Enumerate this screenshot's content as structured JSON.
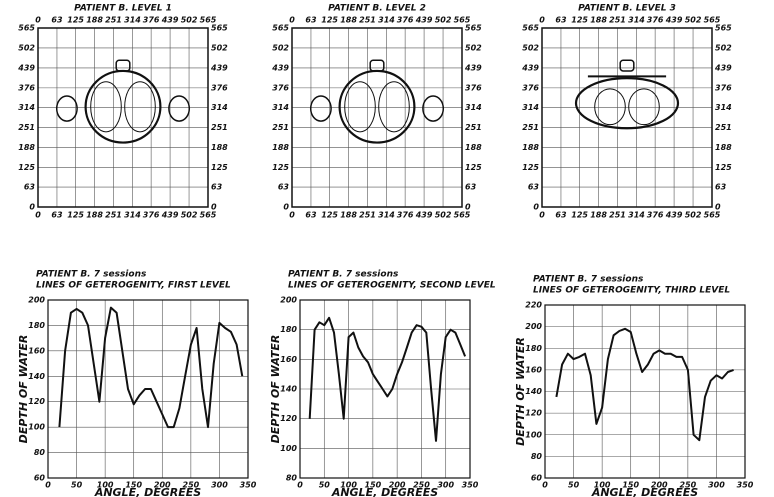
{
  "chart_data": [
    {
      "type": "image",
      "title": "PATIENT B. LEVEL 1",
      "xlim": [
        0,
        565
      ],
      "ylim": [
        0,
        565
      ],
      "xticks": [
        0,
        63,
        125,
        188,
        251,
        314,
        376,
        439,
        502,
        565
      ],
      "yticks": [
        0,
        63,
        125,
        188,
        251,
        314,
        376,
        439,
        502,
        565
      ],
      "grid": true
    },
    {
      "type": "image",
      "title": "PATIENT B. LEVEL 2",
      "xlim": [
        0,
        565
      ],
      "ylim": [
        0,
        565
      ],
      "xticks": [
        0,
        63,
        125,
        188,
        251,
        314,
        376,
        439,
        502,
        565
      ],
      "yticks": [
        0,
        63,
        125,
        188,
        251,
        314,
        376,
        439,
        502,
        565
      ],
      "grid": true
    },
    {
      "type": "image",
      "title": "PATIENT B. LEVEL 3",
      "xlim": [
        0,
        565
      ],
      "ylim": [
        0,
        565
      ],
      "xticks": [
        0,
        63,
        125,
        188,
        251,
        314,
        376,
        439,
        502,
        565
      ],
      "yticks": [
        0,
        63,
        125,
        188,
        251,
        314,
        376,
        439,
        502,
        565
      ],
      "grid": true
    },
    {
      "type": "line",
      "title": "PATIENT B. 7 sessions",
      "subtitle": "LINES OF GETEROGENITY, FIRST LEVEL",
      "x_label": "ANGLE, DEGREES",
      "y_label": "DEPTH OF WATER",
      "color": "#111",
      "grid": true,
      "x": [
        20,
        30,
        40,
        50,
        60,
        70,
        80,
        90,
        100,
        110,
        120,
        130,
        140,
        150,
        160,
        170,
        180,
        190,
        200,
        210,
        220,
        230,
        240,
        250,
        260,
        270,
        280,
        290,
        300,
        310,
        320,
        330,
        340
      ],
      "values": [
        100,
        160,
        190,
        193,
        190,
        180,
        150,
        120,
        170,
        194,
        190,
        160,
        130,
        118,
        125,
        130,
        130,
        120,
        110,
        100,
        100,
        115,
        140,
        165,
        178,
        130,
        100,
        150,
        182,
        178,
        175,
        165,
        140
      ],
      "xlim": [
        0,
        350
      ],
      "ylim": [
        60,
        200
      ],
      "xticks": [
        0,
        50,
        100,
        150,
        200,
        250,
        300,
        350
      ],
      "yticks": [
        60,
        80,
        100,
        120,
        140,
        160,
        180,
        200
      ]
    },
    {
      "type": "line",
      "title": "PATIENT B. 7 sessions",
      "subtitle": "LINES OF GETEROGENITY, SECOND LEVEL",
      "x_label": "ANGLE, DEGREES",
      "y_label": "DEPTH OF WATER",
      "color": "#111",
      "grid": true,
      "x": [
        20,
        30,
        40,
        50,
        60,
        70,
        80,
        90,
        100,
        110,
        120,
        130,
        140,
        150,
        160,
        170,
        180,
        190,
        200,
        210,
        220,
        230,
        240,
        250,
        260,
        270,
        280,
        290,
        300,
        310,
        320,
        330,
        340
      ],
      "values": [
        120,
        180,
        185,
        183,
        188,
        178,
        150,
        120,
        175,
        178,
        168,
        162,
        158,
        150,
        145,
        140,
        135,
        140,
        150,
        158,
        168,
        178,
        183,
        182,
        178,
        140,
        105,
        150,
        175,
        180,
        178,
        170,
        162
      ],
      "xlim": [
        0,
        350
      ],
      "ylim": [
        80,
        200
      ],
      "xticks": [
        0,
        50,
        100,
        150,
        200,
        250,
        300,
        350
      ],
      "yticks": [
        80,
        100,
        120,
        140,
        160,
        180,
        200
      ]
    },
    {
      "type": "line",
      "title": "PATIENT B. 7 sessions",
      "subtitle": "LINES OF GETEROGENITY, THIRD LEVEL",
      "x_label": "ANGLE, DEGREES",
      "y_label": "DEPTH OF WATER",
      "color": "#111",
      "grid": true,
      "x": [
        20,
        30,
        40,
        50,
        60,
        70,
        80,
        90,
        100,
        110,
        120,
        130,
        140,
        150,
        160,
        170,
        180,
        190,
        200,
        210,
        220,
        230,
        240,
        250,
        260,
        270,
        280,
        290,
        300,
        310,
        320,
        330
      ],
      "values": [
        135,
        165,
        175,
        170,
        172,
        175,
        155,
        110,
        125,
        170,
        192,
        196,
        198,
        195,
        175,
        158,
        165,
        175,
        178,
        175,
        175,
        172,
        172,
        160,
        100,
        95,
        135,
        150,
        155,
        152,
        158,
        160
      ],
      "xlim": [
        0,
        350
      ],
      "ylim": [
        60,
        220
      ],
      "xticks": [
        0,
        50,
        100,
        150,
        200,
        250,
        300,
        350
      ],
      "yticks": [
        60,
        80,
        100,
        120,
        140,
        160,
        180,
        200,
        220
      ]
    }
  ]
}
